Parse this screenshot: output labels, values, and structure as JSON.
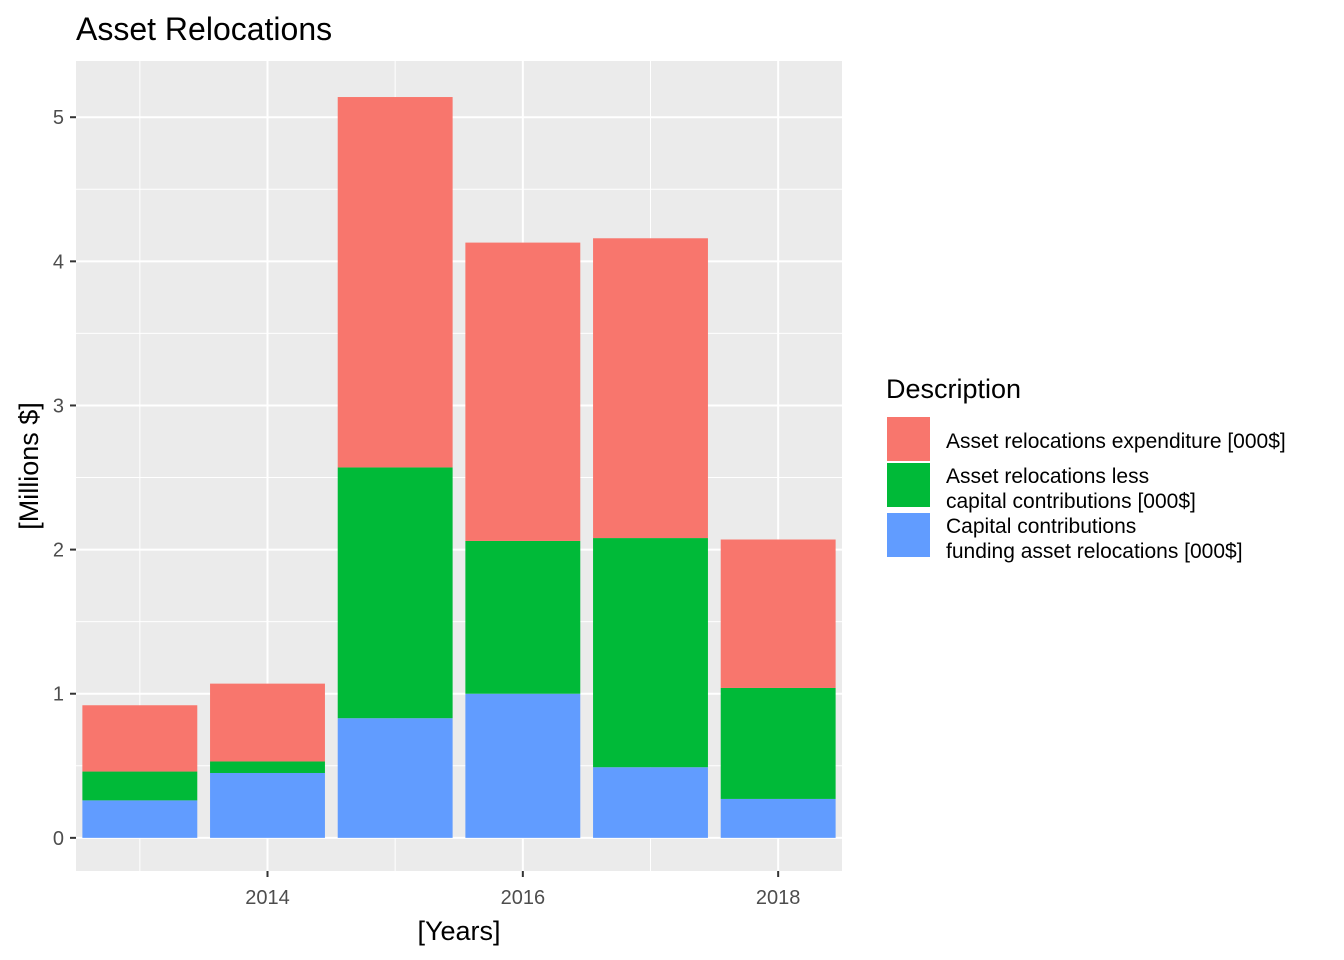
{
  "chart_data": {
    "type": "bar",
    "stacked": true,
    "title": "Asset Relocations",
    "xlabel": "[Years]",
    "ylabel": "[Millions $]",
    "x": [
      2013,
      2014,
      2015,
      2016,
      2017,
      2018
    ],
    "x_ticks": [
      "2014",
      "2016",
      "2018"
    ],
    "y_ticks": [
      "0",
      "1",
      "2",
      "3",
      "4",
      "5"
    ],
    "ylim": [
      -0.23,
      5.39
    ],
    "xlim": [
      2012.5,
      2018.5
    ],
    "grid": true,
    "legend": {
      "title": "Description",
      "position": "right"
    },
    "series": [
      {
        "name": "Capital contributions\nfunding asset relocations [000$]",
        "label_lines": [
          "Capital contributions",
          "funding asset relocations [000$]"
        ],
        "color": "#619CFF",
        "values": [
          0.26,
          0.45,
          0.83,
          1.0,
          0.49,
          0.27
        ]
      },
      {
        "name": "Asset relocations less\ncapital contributions [000$]",
        "label_lines": [
          "Asset relocations less",
          "capital contributions [000$]"
        ],
        "color": "#00BA38",
        "values": [
          0.2,
          0.08,
          1.74,
          1.06,
          1.59,
          0.77
        ]
      },
      {
        "name": "Asset relocations expenditure [000$]",
        "label_lines": [
          "Asset relocations expenditure [000$]"
        ],
        "color": "#F8766D",
        "values": [
          0.46,
          0.54,
          2.57,
          2.07,
          2.08,
          1.03
        ]
      }
    ],
    "legend_order": [
      2,
      1,
      0
    ]
  }
}
